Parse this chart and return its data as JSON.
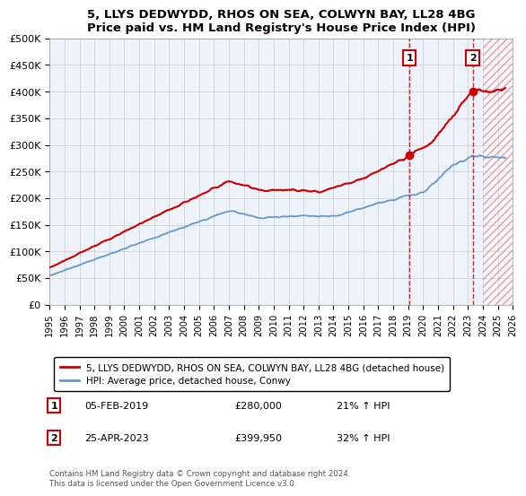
{
  "title": "5, LLYS DEDWYDD, RHOS ON SEA, COLWYN BAY, LL28 4BG",
  "subtitle": "Price paid vs. HM Land Registry's House Price Index (HPI)",
  "ylabel_ticks": [
    "£0",
    "£50K",
    "£100K",
    "£150K",
    "£200K",
    "£250K",
    "£300K",
    "£350K",
    "£400K",
    "£450K",
    "£500K"
  ],
  "ytick_values": [
    0,
    50000,
    100000,
    150000,
    200000,
    250000,
    300000,
    350000,
    400000,
    450000,
    500000
  ],
  "ylim": [
    0,
    500000
  ],
  "xlim_start": 1995,
  "xlim_end": 2026,
  "xticks": [
    1995,
    1996,
    1997,
    1998,
    1999,
    2000,
    2001,
    2002,
    2003,
    2004,
    2005,
    2006,
    2007,
    2008,
    2009,
    2010,
    2011,
    2012,
    2013,
    2014,
    2015,
    2016,
    2017,
    2018,
    2019,
    2020,
    2021,
    2022,
    2023,
    2024,
    2025,
    2026
  ],
  "red_line_color": "#cc0000",
  "blue_line_color": "#6699cc",
  "bg_color": "#eef2fa",
  "grid_color": "#cccccc",
  "sale1_x": 2019.09,
  "sale1_y": 280000,
  "sale2_x": 2023.32,
  "sale2_y": 399950,
  "legend_label1": "5, LLYS DEDWYDD, RHOS ON SEA, COLWYN BAY, LL28 4BG (detached house)",
  "legend_label2": "HPI: Average price, detached house, Conwy",
  "annot1_date": "05-FEB-2019",
  "annot1_price": "£280,000",
  "annot1_pct": "21% ↑ HPI",
  "annot2_date": "25-APR-2023",
  "annot2_price": "£399,950",
  "annot2_pct": "32% ↑ HPI",
  "footer": "Contains HM Land Registry data © Crown copyright and database right 2024.\nThis data is licensed under the Open Government Licence v3.0.",
  "hatch_start": 2024.0
}
